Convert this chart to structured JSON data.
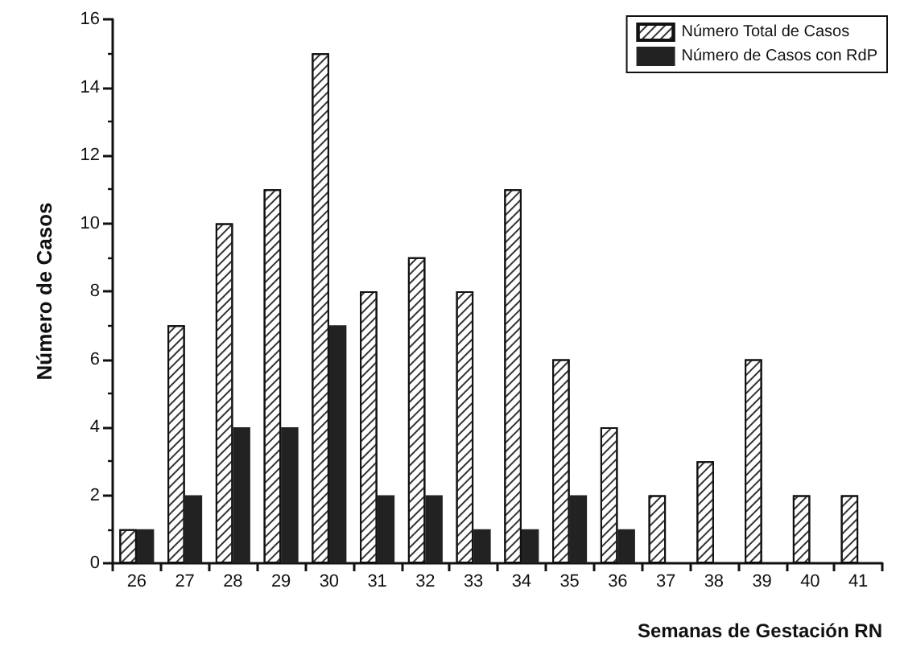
{
  "chart_data": {
    "type": "bar",
    "xlabel": "Semanas de Gestación RN",
    "ylabel": "Número de Casos",
    "categories": [
      "26",
      "27",
      "28",
      "29",
      "30",
      "31",
      "32",
      "33",
      "34",
      "35",
      "36",
      "37",
      "38",
      "39",
      "40",
      "41"
    ],
    "series": [
      {
        "name": "Número Total de Casos",
        "color": "#ffffff",
        "values": [
          1,
          7,
          10,
          11,
          15,
          8,
          9,
          8,
          11,
          6,
          4,
          2,
          3,
          6,
          2,
          2
        ]
      },
      {
        "name": "Número de Casos con RdP",
        "color": "#222222",
        "values": [
          1,
          2,
          4,
          4,
          7,
          2,
          2,
          1,
          1,
          2,
          1,
          0,
          0,
          0,
          0,
          0
        ]
      }
    ],
    "ylim": [
      0,
      16
    ],
    "yticks": [
      0,
      2,
      4,
      6,
      8,
      10,
      12,
      14,
      16
    ],
    "grid": false,
    "legend": "top right"
  }
}
